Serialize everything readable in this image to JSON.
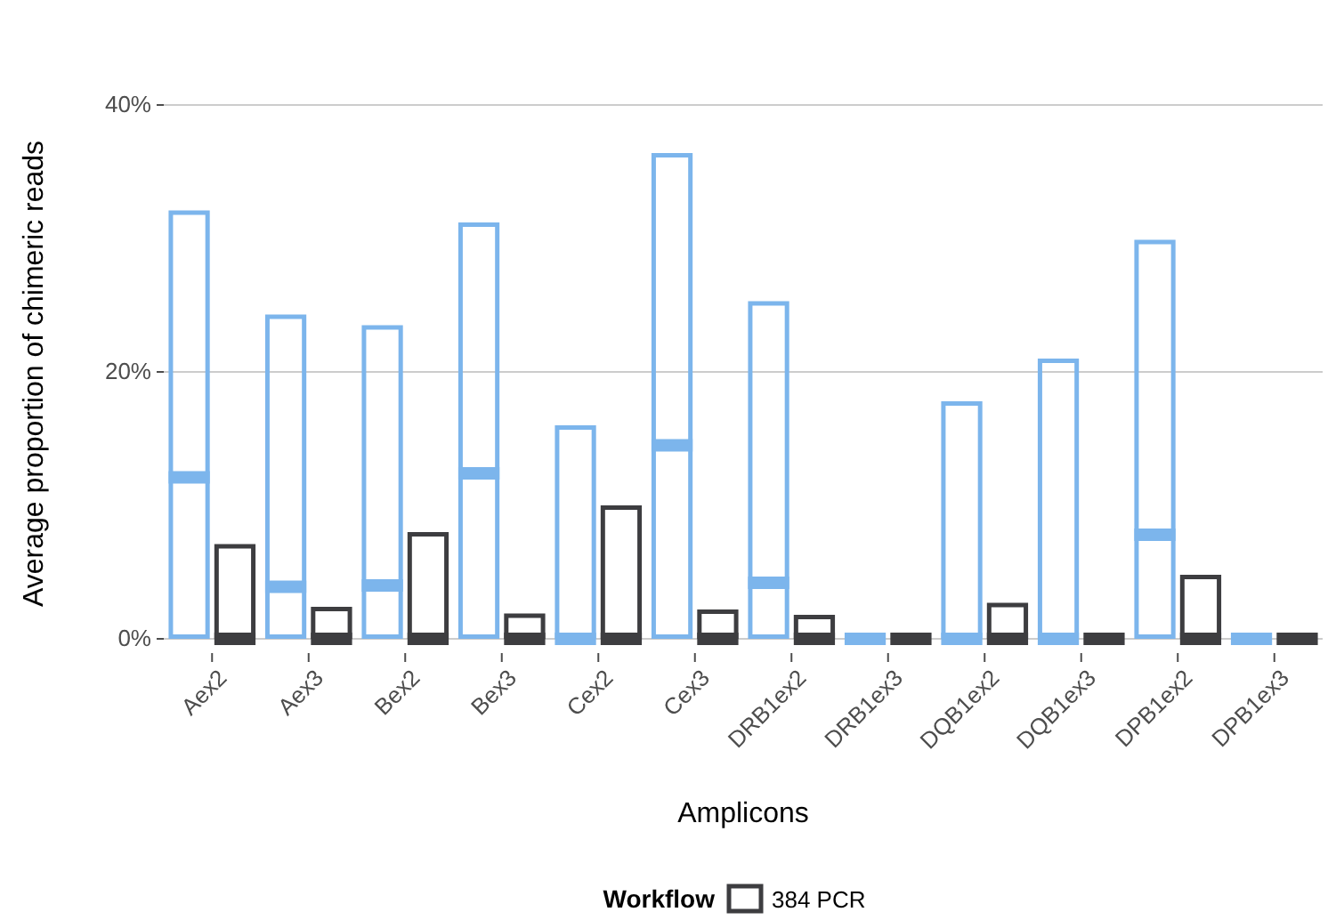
{
  "chart_data": {
    "type": "bar",
    "xlabel": "Amplicons",
    "ylabel": "Average proportion of chimeric reads",
    "legend_title": "Workflow",
    "categories": [
      "Aex2",
      "Aex3",
      "Bex2",
      "Bex3",
      "Cex2",
      "Cex3",
      "DRB1ex2",
      "DRB1ex3",
      "DQB1ex2",
      "DQB1ex3",
      "DPB1ex2",
      "DPB1ex3"
    ],
    "ylim": [
      0,
      40
    ],
    "yticks": [
      {
        "value": 0,
        "label": "0%"
      },
      {
        "value": 20,
        "label": "20%"
      },
      {
        "value": 40,
        "label": "40%"
      }
    ],
    "grid": "y",
    "legend": "bottom",
    "marker": "square",
    "series": [
      {
        "color": "#7cb5ec",
        "values": [
          32.1,
          24.3,
          23.5,
          31.2,
          16.0,
          36.4,
          25.3,
          0,
          17.8,
          21.0,
          29.9,
          0
        ]
      },
      {
        "name": "384 PCR",
        "color": "#3d3d40",
        "values": [
          7.1,
          2.4,
          8.0,
          1.9,
          10.0,
          2.2,
          1.8,
          0,
          2.7,
          0,
          4.8,
          0
        ]
      },
      {
        "type": "scatter",
        "color": "#7cb5ec",
        "values": [
          12.1,
          3.9,
          4.0,
          12.4,
          0,
          14.5,
          4.2,
          0,
          0,
          0,
          7.8,
          0
        ]
      },
      {
        "type": "scatter",
        "color": "#3d3d40",
        "values": [
          0,
          0,
          0,
          0,
          0,
          0,
          0,
          0,
          0,
          0,
          0,
          0
        ]
      }
    ]
  }
}
